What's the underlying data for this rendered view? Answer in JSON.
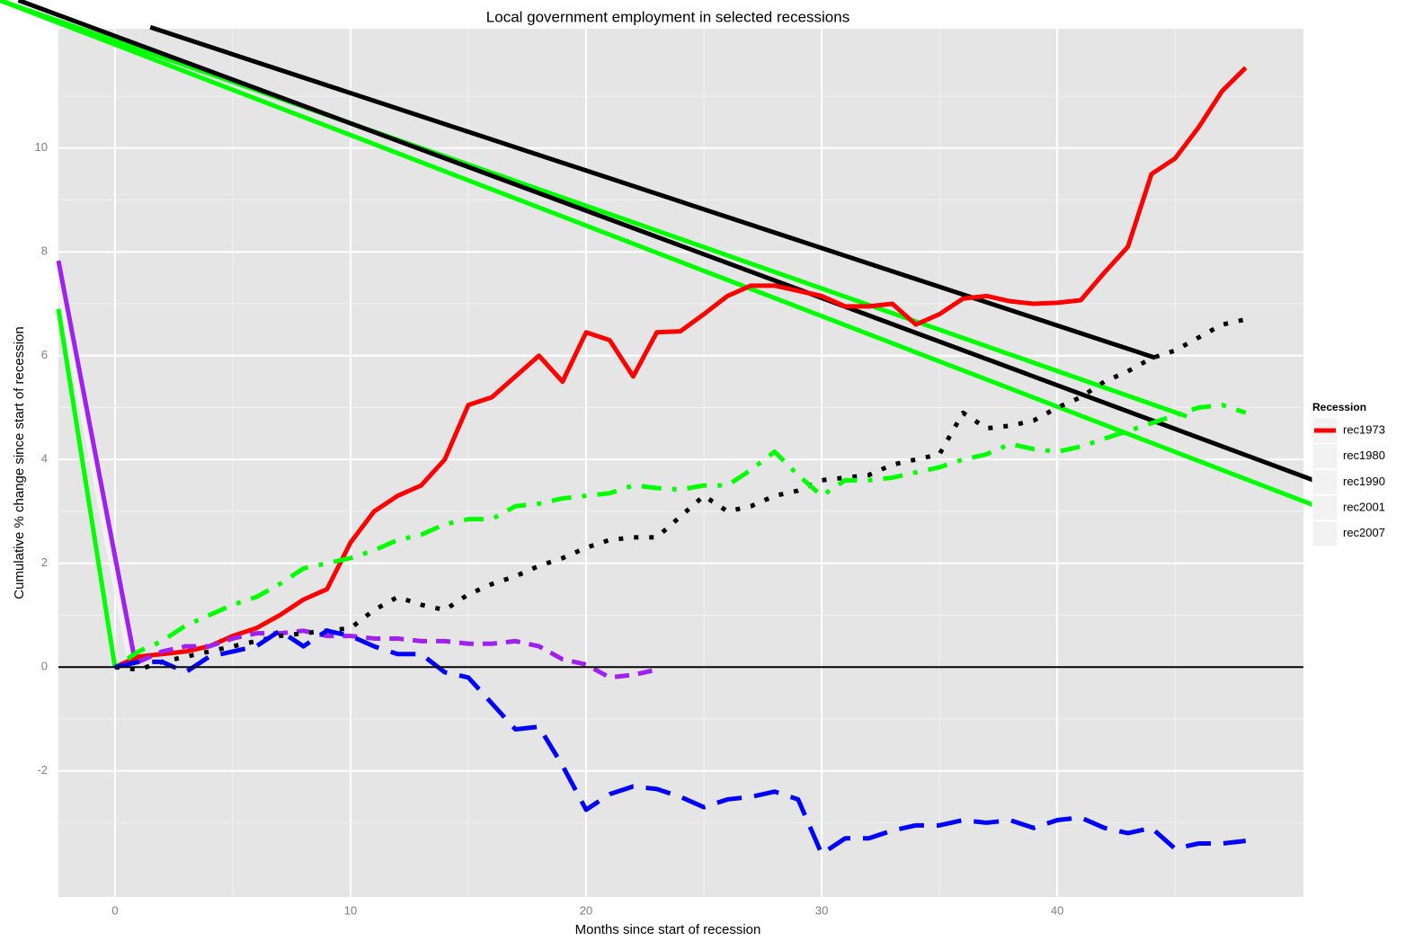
{
  "chart_data": {
    "type": "line",
    "title": "Local government employment in selected recessions",
    "x_label": "Months since start of recession",
    "y_label": "Cumulative % change since start of recession",
    "legend_title": "Recession",
    "legend_position": "right",
    "legend_keys": [
      "#ff0000",
      null,
      null,
      null,
      null
    ],
    "xlim": [
      -2.4,
      50.45
    ],
    "ylim": [
      -4.43,
      12.3
    ],
    "xticks": [
      0,
      10,
      20,
      30,
      40
    ],
    "yticks": [
      -2,
      0,
      2,
      4,
      6,
      8,
      10
    ],
    "grid": true,
    "hline": 0,
    "x": [
      0,
      1,
      2,
      3,
      4,
      5,
      6,
      7,
      8,
      9,
      10,
      11,
      12,
      13,
      14,
      15,
      16,
      17,
      18,
      19,
      20,
      21,
      22,
      23,
      24,
      25,
      26,
      27,
      28,
      29,
      30,
      31,
      32,
      33,
      34,
      35,
      36,
      37,
      38,
      39,
      40,
      41,
      42,
      43,
      44,
      45,
      46,
      47,
      48
    ],
    "series": [
      {
        "name": "rec1973",
        "color": "#ff0000",
        "dash": "solid",
        "values": [
          0,
          0.2,
          0.25,
          0.3,
          0.4,
          0.6,
          0.75,
          1.0,
          1.3,
          1.5,
          2.4,
          3.0,
          3.3,
          3.5,
          4.0,
          5.05,
          5.2,
          5.6,
          6.0,
          5.5,
          6.45,
          6.3,
          5.6,
          6.45,
          6.47,
          6.8,
          7.15,
          7.35,
          7.35,
          7.25,
          7.15,
          6.95,
          6.95,
          7.0,
          6.6,
          6.8,
          7.1,
          7.15,
          7.05,
          7.0,
          7.02,
          7.07,
          7.6,
          8.1,
          9.5,
          9.8,
          10.4,
          11.1,
          11.55
        ]
      },
      {
        "name": "rec1980",
        "color": "#a020f0",
        "dash": "dashed",
        "values": [
          0,
          0.1,
          0.3,
          0.4,
          0.4,
          0.55,
          0.65,
          0.65,
          0.7,
          0.6,
          0.6,
          0.55,
          0.55,
          0.5,
          0.5,
          0.45,
          0.45,
          0.5,
          0.4,
          0.15,
          0.05,
          -0.2,
          -0.15,
          -0.05,
          null,
          null,
          null,
          null,
          null,
          null,
          null,
          null,
          null,
          null,
          null,
          null,
          null,
          null,
          null,
          null,
          null,
          null,
          null,
          null,
          null,
          null,
          null,
          null,
          null
        ]
      },
      {
        "name": "rec1990",
        "color": "#000000",
        "dash": "dotted",
        "values": [
          0,
          -0.05,
          0.1,
          0.2,
          0.3,
          0.4,
          0.5,
          0.6,
          0.65,
          0.7,
          0.75,
          1.1,
          1.35,
          1.2,
          1.1,
          1.4,
          1.6,
          1.75,
          1.95,
          2.1,
          2.3,
          2.45,
          2.5,
          2.5,
          2.9,
          3.3,
          3.0,
          3.1,
          3.3,
          3.4,
          3.6,
          3.65,
          3.7,
          3.9,
          4.0,
          4.1,
          4.9,
          4.6,
          4.65,
          4.75,
          5.0,
          5.2,
          5.5,
          5.7,
          5.95,
          6.1,
          6.35,
          6.6,
          6.7
        ]
      },
      {
        "name": "rec2001",
        "color": "#00ff00",
        "dash": "dotdash",
        "values": [
          0,
          0.3,
          0.5,
          0.8,
          1.0,
          1.2,
          1.35,
          1.6,
          1.9,
          2.0,
          2.1,
          2.25,
          2.45,
          2.55,
          2.75,
          2.85,
          2.85,
          3.1,
          3.15,
          3.25,
          3.3,
          3.35,
          3.5,
          3.45,
          3.42,
          3.5,
          3.5,
          3.8,
          4.15,
          3.7,
          3.3,
          3.6,
          3.6,
          3.65,
          3.75,
          3.85,
          4.0,
          4.1,
          4.3,
          4.2,
          4.15,
          4.25,
          4.4,
          4.55,
          4.7,
          4.85,
          5.0,
          5.05,
          4.9
        ]
      },
      {
        "name": "rec2007",
        "color": "#0000ff",
        "dash": "longdash",
        "values": [
          0,
          0.1,
          0.1,
          -0.1,
          0.2,
          0.3,
          0.4,
          0.7,
          0.4,
          0.7,
          0.6,
          0.4,
          0.25,
          0.25,
          -0.1,
          -0.2,
          -0.7,
          -1.2,
          -1.15,
          -1.9,
          -2.75,
          -2.45,
          -2.3,
          -2.35,
          -2.5,
          -2.7,
          -2.55,
          -2.5,
          -2.4,
          -2.55,
          -3.6,
          -3.3,
          -3.3,
          -3.15,
          -3.05,
          -3.05,
          -2.95,
          -3.0,
          -2.95,
          -3.1,
          -2.95,
          -2.9,
          -3.1,
          -3.2,
          -3.1,
          -3.5,
          -3.4,
          -3.4,
          -3.35
        ]
      }
    ],
    "lines": [
      {
        "color": "#f2f2f2",
        "x": [
          -2.4,
          0.65
        ],
        "values": [
          7.3,
          0.05
        ]
      },
      {
        "color": "#a020f0",
        "x": [
          -2.4,
          0.85
        ],
        "values": [
          7.83,
          0.12
        ]
      },
      {
        "color": "#00ff00",
        "x": [
          -2.4,
          0
        ],
        "values": [
          6.9,
          0
        ]
      },
      {
        "color": "#00ff00",
        "x": [
          -4.9,
          51.0
        ],
        "values": [
          12.85,
          3.1
        ]
      },
      {
        "color": "#00ff00",
        "x": [
          -4.9,
          45.5
        ],
        "values": [
          12.85,
          4.83
        ]
      },
      {
        "color": "#000000",
        "x": [
          -4.1,
          51.0
        ],
        "values": [
          12.85,
          3.58
        ]
      },
      {
        "color": "#000000",
        "x": [
          1.5,
          44.16
        ],
        "values": [
          12.33,
          5.96
        ]
      }
    ]
  }
}
